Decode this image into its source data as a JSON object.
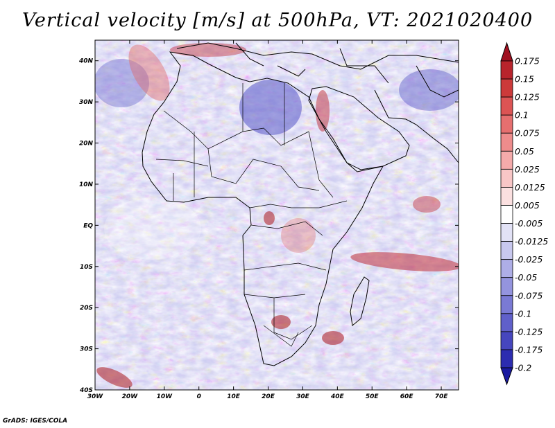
{
  "title": "Vertical velocity [m/s] at 500hPa, VT: 2021020400",
  "credit": "GrADS: IGES/COLA",
  "map": {
    "lon_range": [
      -30,
      75
    ],
    "lat_range": [
      -40,
      45
    ],
    "lon_labels": [
      "30W",
      "20W",
      "10W",
      "0",
      "10E",
      "20E",
      "30E",
      "40E",
      "50E",
      "60E",
      "70E"
    ],
    "lat_labels": [
      "40N",
      "30N",
      "20N",
      "10N",
      "EQ",
      "10S",
      "20S",
      "30S",
      "40S"
    ]
  },
  "colorbar": {
    "labels": [
      "0.175",
      "0.15",
      "0.125",
      "0.1",
      "0.075",
      "0.05",
      "0.025",
      "0.0125",
      "0.005",
      "-0.005",
      "-0.0125",
      "-0.025",
      "-0.05",
      "-0.075",
      "-0.1",
      "-0.125",
      "-0.175",
      "-0.2"
    ],
    "colors": [
      "#a01020",
      "#b8242c",
      "#cc3a3a",
      "#dc5454",
      "#e66f6f",
      "#ee8c8c",
      "#f4aaaa",
      "#f8c6c6",
      "#fbe0e0",
      "#ffffff",
      "#e2e2f6",
      "#c8c8ee",
      "#aeaee6",
      "#9494de",
      "#7a7ad4",
      "#6060ca",
      "#4646be",
      "#2c2cb0",
      "#1a1aa0"
    ]
  }
}
